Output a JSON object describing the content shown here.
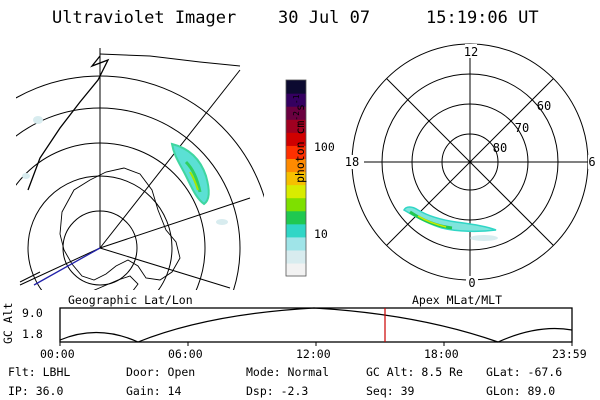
{
  "header": {
    "title": "Ultraviolet Imager",
    "date": "30 Jul 07",
    "time": "15:19:06 UT"
  },
  "panels": {
    "geo_label": "Geographic Lat/Lon",
    "apex_label": "Apex MLat/MLT"
  },
  "colorbar": {
    "unit_main": "photon cm",
    "unit_exp1": "-2",
    "unit_mid": "s",
    "unit_exp2": "-1",
    "tick_100": "100",
    "tick_10": "10",
    "colors": [
      "#f2f2f2",
      "#d8ecef",
      "#9fe4e8",
      "#30d6c6",
      "#20c850",
      "#7ee000",
      "#d8ec00",
      "#f6c000",
      "#ff8a00",
      "#ff3000",
      "#d00000",
      "#a00020",
      "#6a0040",
      "#340060",
      "#0c0a30"
    ]
  },
  "polar": {
    "mlt_labels": [
      "12",
      "6",
      "0",
      "18"
    ],
    "lat_labels": [
      "60",
      "70",
      "80"
    ]
  },
  "altitude_plot": {
    "label_top": "GC",
    "label_bottom": "Alt",
    "y_ticks": [
      "9.0",
      "1.8"
    ],
    "x_ticks": [
      "00:00",
      "06:00",
      "12:00",
      "18:00",
      "23:59"
    ],
    "current_time_color": "#cc0000"
  },
  "status": {
    "filter": "Flt: LBHL",
    "ip": "IP: 36.0",
    "door": "Door: Open",
    "gain": "Gain: 14",
    "mode": "Mode: Normal",
    "dsp": "Dsp:   -2.3",
    "gc_alt": "GC Alt: 8.5 Re",
    "seq": "Seq: 39",
    "glat": "GLat: -67.6",
    "glon": "GLon:  89.0"
  }
}
